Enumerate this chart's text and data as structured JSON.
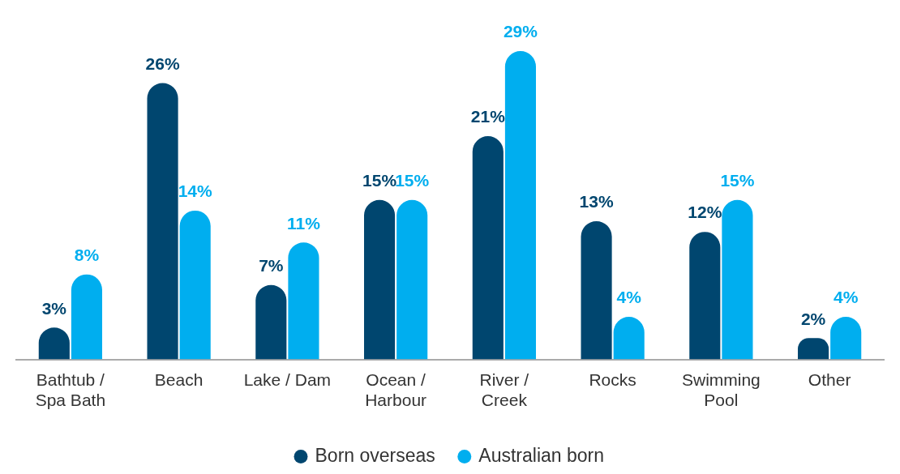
{
  "chart_data": {
    "type": "bar",
    "categories": [
      "Bathtub / Spa Bath",
      "Beach",
      "Lake / Dam",
      "Ocean / Harbour",
      "River / Creek",
      "Rocks",
      "Swimming Pool",
      "Other"
    ],
    "series": [
      {
        "name": "Born overseas",
        "color": "#00466f",
        "values": [
          3,
          26,
          7,
          15,
          21,
          13,
          12,
          2
        ],
        "value_labels": [
          "3%",
          "26%",
          "7%",
          "15%",
          "21%",
          "13%",
          "12%",
          "2%"
        ]
      },
      {
        "name": "Australian born",
        "color": "#00aeef",
        "values": [
          8,
          14,
          11,
          15,
          29,
          4,
          15,
          4
        ],
        "value_labels": [
          "8%",
          "14%",
          "11%",
          "15%",
          "29%",
          "4%",
          "15%",
          "4%"
        ]
      }
    ],
    "legend": "bottom",
    "grid": false
  }
}
